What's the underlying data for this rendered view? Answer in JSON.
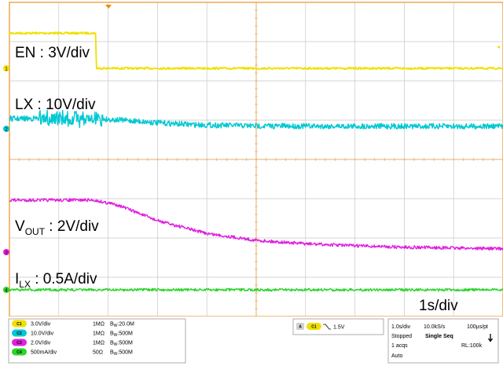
{
  "chart_data": {
    "type": "line",
    "title": "",
    "xlabel": "",
    "ylabel": "",
    "time_per_div": "1s/div",
    "grid": true,
    "divisions": {
      "x": 10,
      "y": 8
    },
    "x_range_s": [
      0,
      10
    ],
    "series": [
      {
        "name": "EN",
        "label": "EN : 3V/div",
        "channel": "1",
        "color": "#f0e000",
        "x": [
          0,
          1.75,
          1.76,
          10
        ],
        "y": [
          3.2,
          3.2,
          0,
          0
        ],
        "unit": "V"
      },
      {
        "name": "LX",
        "label": "LX : 10V/div",
        "channel": "2",
        "color": "#00c8d2",
        "x": [
          0,
          1.1,
          1.8,
          2.5,
          3.0,
          3.5,
          4.0,
          5.0,
          6.0,
          8.0,
          10
        ],
        "y": [
          7.5,
          8,
          7.5,
          6,
          4.5,
          3.5,
          2.8,
          2.2,
          2.0,
          1.9,
          1.9
        ],
        "unit": "V"
      },
      {
        "name": "VOUT",
        "label_main": "V",
        "label_sub": "OUT",
        "label_rest": " : 2V/div",
        "channel": "3",
        "color": "#e020e0",
        "x": [
          0,
          1.7,
          2.2,
          3.0,
          4.0,
          5.0,
          6.0,
          7.0,
          8.0,
          10
        ],
        "y": [
          5.3,
          5.3,
          4.8,
          3.2,
          1.9,
          1.2,
          0.85,
          0.65,
          0.5,
          0.35
        ],
        "unit": "V"
      },
      {
        "name": "ILX",
        "label_main": "I",
        "label_sub": "LX",
        "label_rest": " : 0.5A/div",
        "channel": "4",
        "color": "#2ad42a",
        "x": [
          0,
          10
        ],
        "y": [
          0,
          0
        ],
        "unit": "A"
      }
    ]
  },
  "statusbar": {
    "channels": [
      {
        "chip": "C1",
        "scale": "3.0V/div",
        "imp": "1MΩ",
        "bw": "20.0M",
        "color": "#f0e000"
      },
      {
        "chip": "C2",
        "scale": "10.0V/div",
        "imp": "1MΩ",
        "bw": "500M",
        "color": "#00c8d2"
      },
      {
        "chip": "C3",
        "scale": "2.0V/div",
        "imp": "1MΩ",
        "bw": "500M",
        "color": "#e020e0"
      },
      {
        "chip": "C4",
        "scale": "500mA/div",
        "imp": "50Ω",
        "bw": "500M",
        "color": "#2ad42a"
      }
    ],
    "bw_prefix": "B",
    "bw_sub": "W",
    "trigger": {
      "tag": "A",
      "chip": "C1",
      "level": "1.5V"
    },
    "acq": {
      "timebase": "1.0s/div",
      "rate": "10.0kS/s",
      "per_pt": "100µs/pt",
      "state": "Stopped",
      "mode": "Single Seq",
      "acqs": "1 acqs",
      "rl": "RL:100k",
      "trig_mode": "Auto"
    }
  }
}
